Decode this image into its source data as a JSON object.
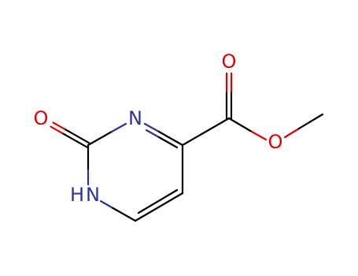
{
  "atoms": [
    {
      "label": "O"
    },
    {
      "label": "N"
    },
    {
      "label": "O"
    },
    {
      "label": "O"
    },
    {
      "label": "H"
    },
    {
      "label": "N"
    }
  ]
}
